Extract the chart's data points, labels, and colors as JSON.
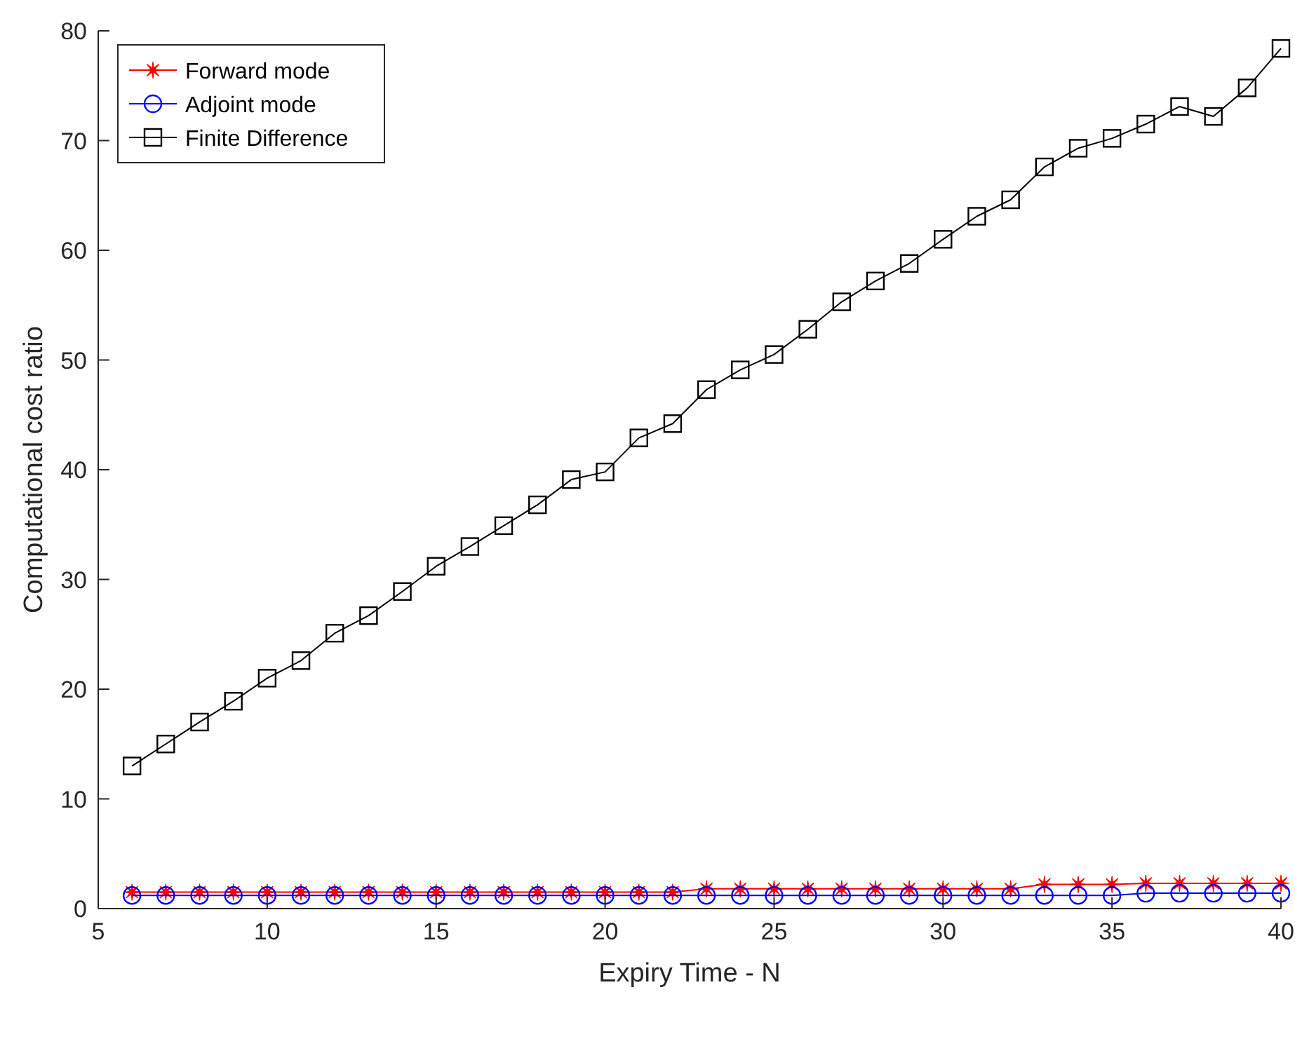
{
  "chart_data": {
    "type": "line",
    "xlabel": "Expiry Time - N",
    "ylabel": "Computational cost ratio",
    "x": [
      6,
      7,
      8,
      9,
      10,
      11,
      12,
      13,
      14,
      15,
      16,
      17,
      18,
      19,
      20,
      21,
      22,
      23,
      24,
      25,
      26,
      27,
      28,
      29,
      30,
      31,
      32,
      33,
      34,
      35,
      36,
      37,
      38,
      39,
      40
    ],
    "series": [
      {
        "name": "Forward mode",
        "color": "#ff0000",
        "marker": "star",
        "values": [
          1.5,
          1.5,
          1.5,
          1.5,
          1.5,
          1.5,
          1.5,
          1.5,
          1.5,
          1.5,
          1.5,
          1.5,
          1.5,
          1.5,
          1.5,
          1.5,
          1.5,
          1.8,
          1.8,
          1.8,
          1.8,
          1.8,
          1.8,
          1.8,
          1.8,
          1.8,
          1.8,
          2.2,
          2.2,
          2.2,
          2.3,
          2.3,
          2.3,
          2.3,
          2.3
        ]
      },
      {
        "name": "Adjoint mode",
        "color": "#0000ff",
        "marker": "circle",
        "values": [
          1.2,
          1.2,
          1.2,
          1.2,
          1.2,
          1.2,
          1.2,
          1.2,
          1.2,
          1.2,
          1.2,
          1.2,
          1.2,
          1.2,
          1.2,
          1.2,
          1.2,
          1.2,
          1.2,
          1.2,
          1.2,
          1.2,
          1.2,
          1.2,
          1.2,
          1.2,
          1.2,
          1.2,
          1.2,
          1.2,
          1.4,
          1.4,
          1.4,
          1.4,
          1.4
        ]
      },
      {
        "name": "Finite Difference",
        "color": "#000000",
        "marker": "square",
        "values": [
          13,
          15,
          17,
          18.9,
          21,
          22.6,
          25.1,
          26.7,
          28.9,
          31.2,
          33,
          34.9,
          36.8,
          39.1,
          39.8,
          42.9,
          44.2,
          47.3,
          49.1,
          50.5,
          52.8,
          55.3,
          57.2,
          58.8,
          61,
          63.1,
          64.6,
          67.6,
          69.3,
          70.2,
          71.5,
          73.1,
          72.2,
          74.8,
          78.4
        ]
      }
    ],
    "xlim": [
      5,
      40
    ],
    "xticks": [
      5,
      10,
      15,
      20,
      25,
      30,
      35,
      40
    ],
    "ylim": [
      0,
      80
    ],
    "yticks": [
      0,
      10,
      20,
      30,
      40,
      50,
      60,
      70,
      80
    ],
    "grid": false,
    "legend": "top left"
  }
}
